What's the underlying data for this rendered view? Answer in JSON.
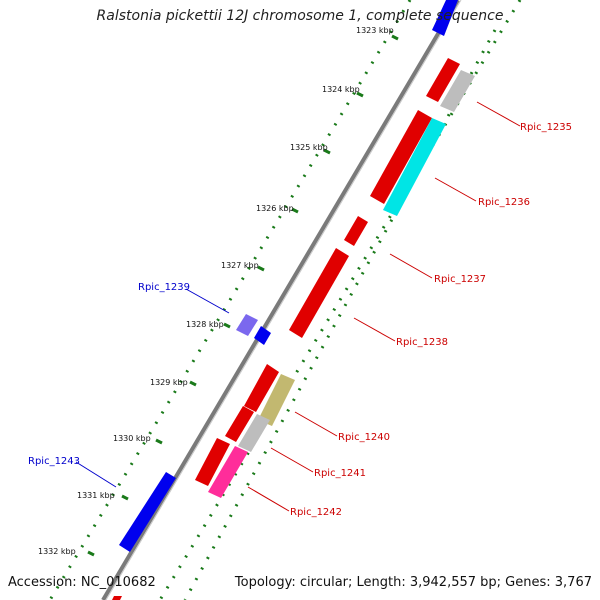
{
  "title": "Ralstonia pickettii 12J chromosome 1, complete sequence",
  "accession": "Accession: NC_010682",
  "topology": "Topology: circular; Length: 3,942,557 bp; Genes: 3,767",
  "ticks": [
    {
      "label": "1323 kbp"
    },
    {
      "label": "1324 kbp"
    },
    {
      "label": "1325 kbp"
    },
    {
      "label": "1326 kbp"
    },
    {
      "label": "1327 kbp"
    },
    {
      "label": "1328 kbp"
    },
    {
      "label": "1329 kbp"
    },
    {
      "label": "1330 kbp"
    },
    {
      "label": "1331 kbp"
    },
    {
      "label": "1332 kbp"
    }
  ],
  "gene_labels": [
    {
      "id": "Rpic_1235",
      "color": "#cc0000"
    },
    {
      "id": "Rpic_1236",
      "color": "#cc0000"
    },
    {
      "id": "Rpic_1237",
      "color": "#cc0000"
    },
    {
      "id": "Rpic_1238",
      "color": "#cc0000"
    },
    {
      "id": "Rpic_1239",
      "color": "#0000cc"
    },
    {
      "id": "Rpic_1240",
      "color": "#cc0000"
    },
    {
      "id": "Rpic_1241",
      "color": "#cc0000"
    },
    {
      "id": "Rpic_1242",
      "color": "#cc0000"
    },
    {
      "id": "Rpic_1243",
      "color": "#0000cc"
    }
  ],
  "colors": {
    "backbone": "#7a7a7a",
    "tick_dots": "#1a7a1a",
    "forward_gene": "#e00000",
    "reverse_gene": "#0000ee",
    "rna_gray": "#bdbdbd",
    "cyan": "#00e5e5",
    "olive": "#c2b870",
    "pink": "#ff2d9a",
    "violet": "#7b68ee"
  }
}
